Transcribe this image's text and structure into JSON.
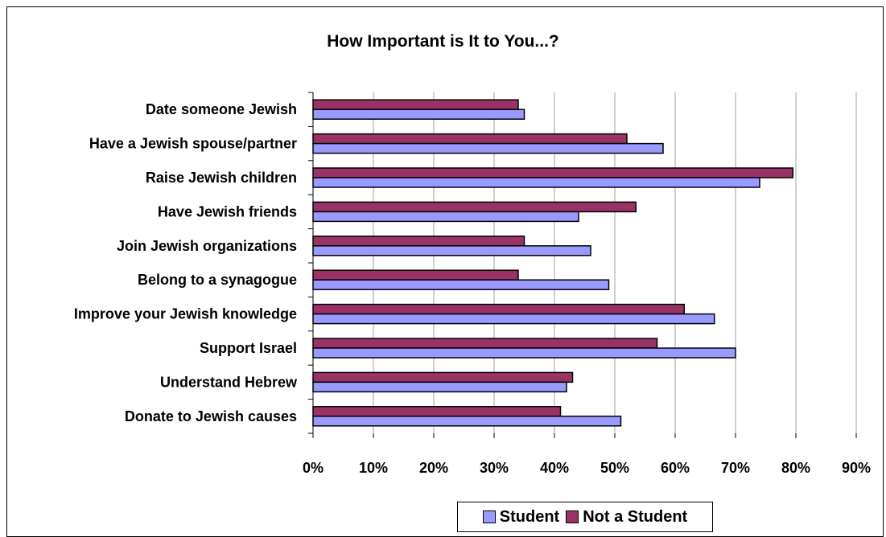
{
  "colors": {
    "student": "#9999FF",
    "not_student": "#993366",
    "grid": "#A0A0A0",
    "axis": "#000000"
  },
  "chart_data": {
    "type": "bar",
    "orientation": "horizontal",
    "title": "How Important is It to You...?",
    "categories": [
      "Date someone Jewish",
      "Have a Jewish spouse/partner",
      "Raise Jewish children",
      "Have Jewish friends",
      "Join Jewish organizations",
      "Belong to a synagogue",
      "Improve your Jewish knowledge",
      "Support Israel",
      "Understand Hebrew",
      "Donate to Jewish causes"
    ],
    "series": [
      {
        "name": "Student",
        "values": [
          35,
          58,
          74,
          44,
          46,
          49,
          66.5,
          70,
          42,
          51
        ]
      },
      {
        "name": "Not a Student",
        "values": [
          34,
          52,
          79.5,
          53.5,
          35,
          34,
          61.5,
          57,
          43,
          41
        ]
      }
    ],
    "x_ticks": [
      "0%",
      "10%",
      "20%",
      "30%",
      "40%",
      "50%",
      "60%",
      "70%",
      "80%",
      "90%"
    ],
    "xlim": [
      0,
      90
    ],
    "grid": true,
    "legend_position": "bottom"
  }
}
